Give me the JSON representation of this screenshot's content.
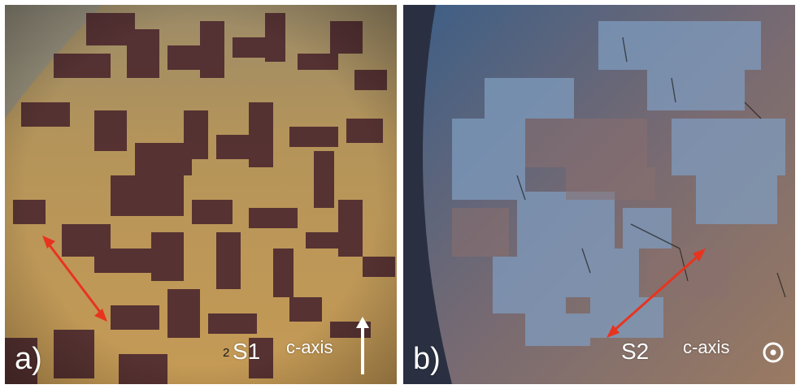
{
  "panels": {
    "a": {
      "letter": "a)",
      "sample": "S1",
      "axis_label": "c-axis",
      "stray_digit": "2",
      "axis_icon": "up-arrow-icon"
    },
    "b": {
      "letter": "b)",
      "sample": "S2",
      "axis_label": "c-axis",
      "axis_icon": "out-of-plane-dot-icon"
    }
  },
  "colors": {
    "arrow": "#e8341f",
    "label_text": "#ffffff"
  }
}
